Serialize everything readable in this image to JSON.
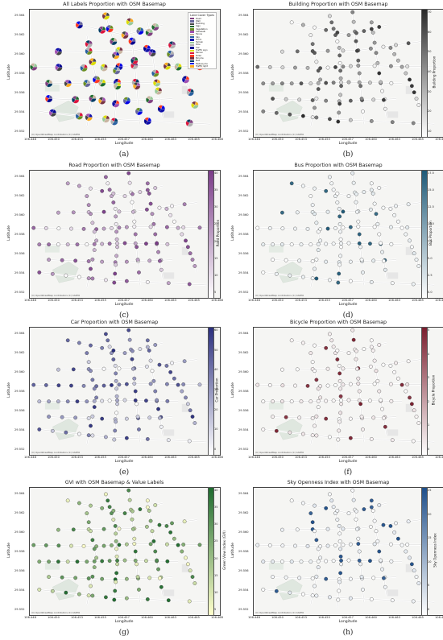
{
  "axes": {
    "xlabel": "Longitude",
    "ylabel": "Latitude",
    "xticks": [
      "106.448",
      "106.450",
      "106.453",
      "106.455",
      "106.457",
      "106.460",
      "106.463",
      "106.465",
      "106.468"
    ],
    "yticks": [
      "29.564",
      "29.562",
      "29.560",
      "29.558",
      "29.556",
      "29.554",
      "29.552"
    ],
    "credit": "(C) OpenStreetMap contributors (C) CARTO"
  },
  "panels": [
    {
      "id": "a",
      "caption": "(a)",
      "title": "All Labels Proportion with OSM Basemap",
      "cbar": null,
      "accent": "#6a5a8a",
      "legend": {
        "title": "Land Cover Types",
        "items": [
          {
            "label": "Road",
            "color": "#804080"
          },
          {
            "label": "Wall",
            "color": "#66669c"
          },
          {
            "label": "Building",
            "color": "#464646"
          },
          {
            "label": "Sign",
            "color": "#1e6b2e"
          },
          {
            "label": "Vegetation",
            "color": "#6b8e23"
          },
          {
            "label": "Sidewalk",
            "color": "#a050b0"
          },
          {
            "label": "Fence",
            "color": "#c8b4a0"
          },
          {
            "label": "Sky",
            "color": "#2860a0"
          },
          {
            "label": "Truck",
            "color": "#1010aa"
          },
          {
            "label": "Terrain",
            "color": "#98c898"
          },
          {
            "label": "Pole",
            "color": "#b0b0b0"
          },
          {
            "label": "Car",
            "color": "#00008e"
          },
          {
            "label": "Traffic sign",
            "color": "#dcdc00"
          },
          {
            "label": "Person",
            "color": "#dc143c"
          },
          {
            "label": "Rider",
            "color": "#ff3a20"
          },
          {
            "label": "Bicycle",
            "color": "#773344"
          },
          {
            "label": "Bus",
            "color": "#003c64"
          },
          {
            "label": "Motorcycle",
            "color": "#0000e6"
          },
          {
            "label": "Traffic light",
            "color": "#faaa1e"
          }
        ]
      }
    },
    {
      "id": "b",
      "caption": "(b)",
      "title": "Building Proportion with OSM Basemap",
      "accent": "#3a3a3a",
      "cbar": {
        "label": "Building Proportion",
        "ticks": [
          "70",
          "60",
          "50",
          "40",
          "30",
          "20",
          "10"
        ],
        "from": "#ffffff",
        "to": "#2a2a2a"
      }
    },
    {
      "id": "c",
      "caption": "(c)",
      "title": "Road Proportion with OSM Basemap",
      "accent": "#7a3c88",
      "cbar": {
        "label": "Road Proportion",
        "ticks": [
          "40",
          "35",
          "30",
          "25",
          "20",
          "15",
          "10",
          "5"
        ],
        "from": "#ffffff",
        "to": "#7a3c88"
      }
    },
    {
      "id": "d",
      "caption": "(d)",
      "title": "Bus Proportion with OSM Basemap",
      "accent": "#1f5a78",
      "cbar": {
        "label": "Bus Proportion",
        "ticks": [
          "17.5",
          "15.0",
          "12.5",
          "10.0",
          "7.5",
          "5.0",
          "2.5",
          "0.0"
        ],
        "from": "#ffffff",
        "to": "#1f5a78"
      }
    },
    {
      "id": "e",
      "caption": "(e)",
      "title": "Car Proportion with OSM Basemap",
      "accent": "#2b2f7e",
      "cbar": {
        "label": "Car Proportion",
        "ticks": [
          "60",
          "50",
          "40",
          "30",
          "20",
          "10",
          "0"
        ],
        "from": "#ffffff",
        "to": "#2b2f7e"
      }
    },
    {
      "id": "f",
      "caption": "(f)",
      "title": "Bicycle Proportion with OSM Basemap",
      "accent": "#7a1e2e",
      "cbar": {
        "label": "Bicycle Proportion",
        "ticks": [
          "5",
          "4",
          "3",
          "2",
          "1",
          "0"
        ],
        "from": "#ffffff",
        "to": "#7a1e2e"
      }
    },
    {
      "id": "g",
      "caption": "(g)",
      "title": "GVI with OSM Basemap & Value Labels",
      "accent": "#1e6b2e",
      "cbar": {
        "label": "Green View Index (GVI)",
        "ticks": [
          "40",
          "35",
          "30",
          "25",
          "20",
          "15",
          "10",
          "5"
        ],
        "from": "#ffffcc",
        "to": "#1e6b2e"
      }
    },
    {
      "id": "h",
      "caption": "(h)",
      "title": "Sky Openness Index with OSM Basemap",
      "accent": "#1f4f8a",
      "cbar": {
        "label": "Sky Openness Index",
        "ticks": [
          "25",
          "20",
          "15",
          "10",
          "5",
          "0"
        ],
        "from": "#ffffff",
        "to": "#1f4f8a"
      }
    }
  ]
}
